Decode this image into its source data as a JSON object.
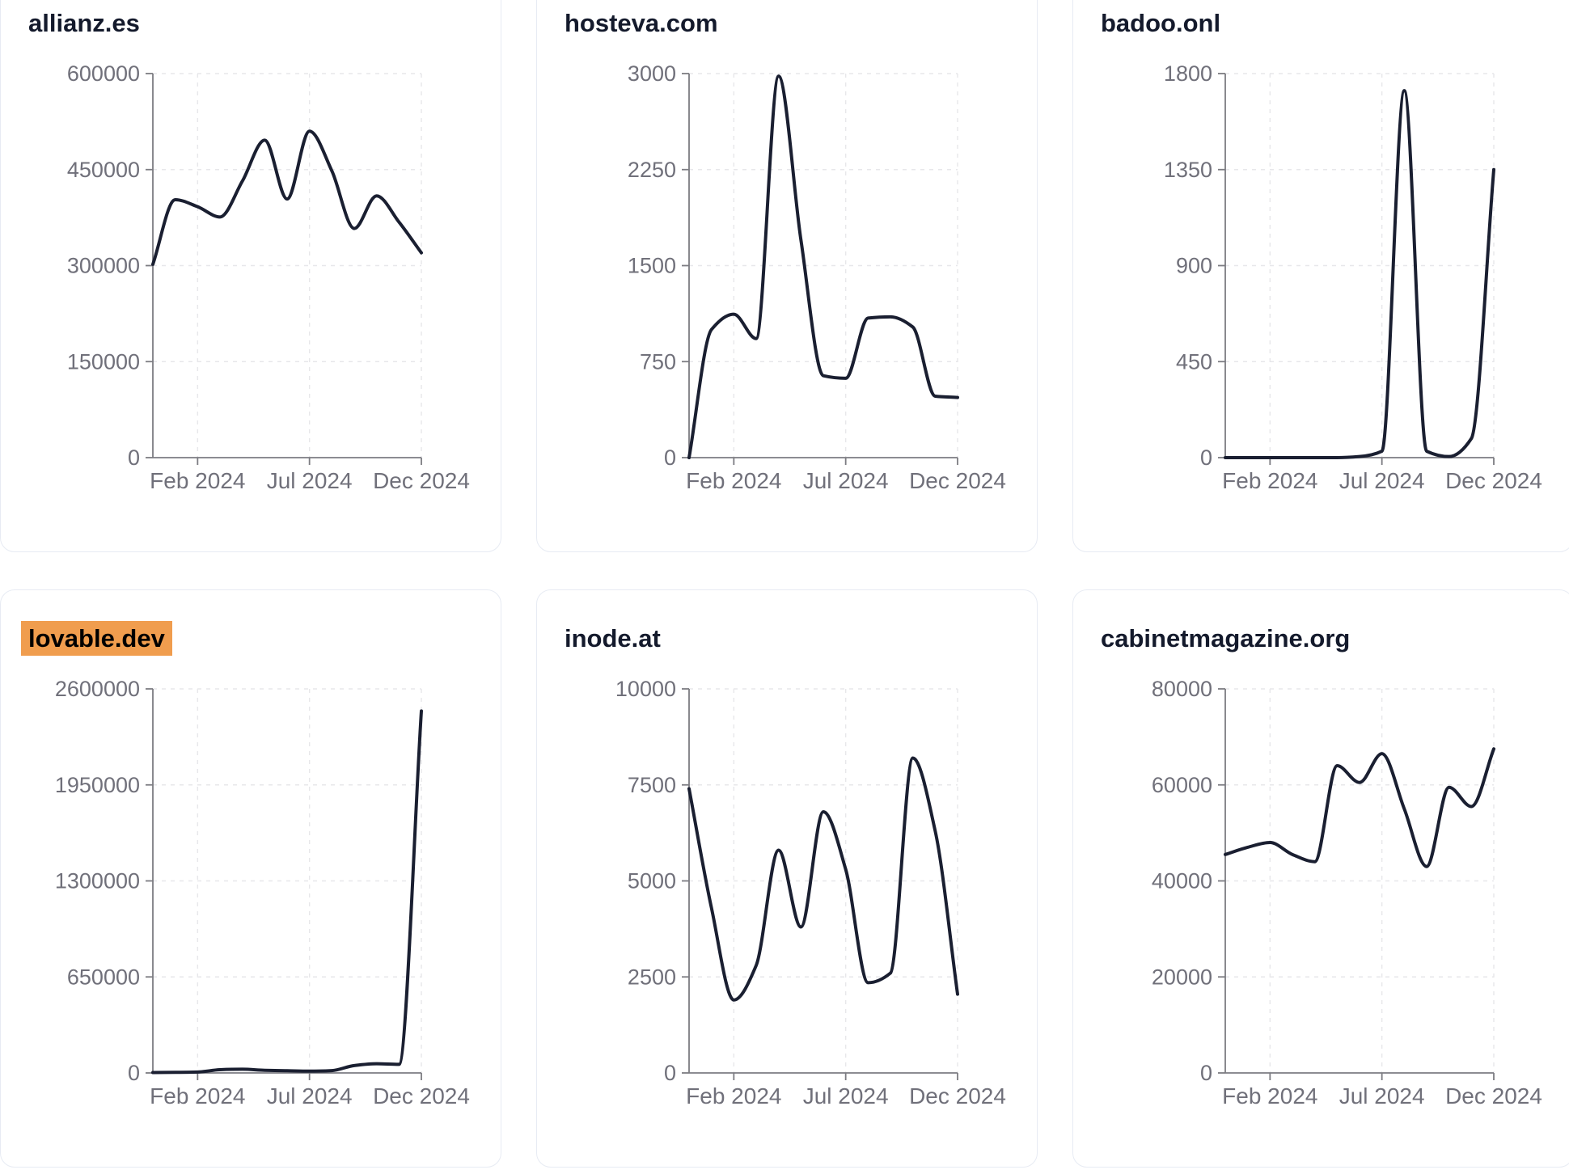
{
  "page": {
    "background": "#ffffff"
  },
  "style": {
    "line_color": "#1a1f31",
    "title_color": "#141a2c",
    "tick_label_color": "#70707a",
    "axis_color": "#7c7c82",
    "grid_color": "#e7e7ea",
    "card_border_color": "#e7ebf3",
    "card_background": "#ffffff",
    "highlight_color": "#f09d4e",
    "highlight_text_color": "#000000"
  },
  "x_tick_indices": [
    2,
    7,
    12
  ],
  "x_tick_labels": [
    "Feb 2024",
    "Jul 2024",
    "Dec 2024"
  ],
  "chart_data": [
    {
      "type": "line",
      "title": "allianz.es",
      "highlighted": false,
      "x": [
        "Dec 2023",
        "Jan 2024",
        "Feb 2024",
        "Mar 2024",
        "Apr 2024",
        "May 2024",
        "Jun 2024",
        "Jul 2024",
        "Aug 2024",
        "Sep 2024",
        "Oct 2024",
        "Nov 2024",
        "Dec 2024"
      ],
      "x_tick_labels": [
        "Feb 2024",
        "Jul 2024",
        "Dec 2024"
      ],
      "y_ticks": [
        0,
        150000,
        300000,
        450000,
        600000
      ],
      "ylim": [
        0,
        600000
      ],
      "values": [
        302000,
        403000,
        392000,
        376000,
        432000,
        496000,
        404000,
        510000,
        448000,
        358000,
        409000,
        368000,
        320000
      ],
      "grid": "dashed",
      "legend": "none"
    },
    {
      "type": "line",
      "title": "hosteva.com",
      "highlighted": false,
      "x": [
        "Dec 2023",
        "Jan 2024",
        "Feb 2024",
        "Mar 2024",
        "Apr 2024",
        "May 2024",
        "Jun 2024",
        "Jul 2024",
        "Aug 2024",
        "Sep 2024",
        "Oct 2024",
        "Nov 2024",
        "Dec 2024"
      ],
      "x_tick_labels": [
        "Feb 2024",
        "Jul 2024",
        "Dec 2024"
      ],
      "y_ticks": [
        0,
        750,
        1500,
        2250,
        3000
      ],
      "ylim": [
        0,
        3000
      ],
      "values": [
        0,
        1000,
        1120,
        930,
        2980,
        1700,
        640,
        620,
        1090,
        1100,
        1020,
        480,
        470
      ],
      "grid": "dashed",
      "legend": "none"
    },
    {
      "type": "line",
      "title": "badoo.onl",
      "highlighted": false,
      "x": [
        "Dec 2023",
        "Jan 2024",
        "Feb 2024",
        "Mar 2024",
        "Apr 2024",
        "May 2024",
        "Jun 2024",
        "Jul 2024",
        "Aug 2024",
        "Sep 2024",
        "Oct 2024",
        "Nov 2024",
        "Dec 2024"
      ],
      "x_tick_labels": [
        "Feb 2024",
        "Jul 2024",
        "Dec 2024"
      ],
      "y_ticks": [
        0,
        450,
        900,
        1350,
        1800
      ],
      "ylim": [
        0,
        1800
      ],
      "values": [
        0,
        0,
        0,
        0,
        0,
        0,
        5,
        30,
        1720,
        30,
        5,
        90,
        1350
      ],
      "grid": "dashed",
      "legend": "none"
    },
    {
      "type": "line",
      "title": "lovable.dev",
      "highlighted": true,
      "x": [
        "Dec 2023",
        "Jan 2024",
        "Feb 2024",
        "Mar 2024",
        "Apr 2024",
        "May 2024",
        "Jun 2024",
        "Jul 2024",
        "Aug 2024",
        "Sep 2024",
        "Oct 2024",
        "Nov 2024",
        "Dec 2024"
      ],
      "x_tick_labels": [
        "Feb 2024",
        "Jul 2024",
        "Dec 2024"
      ],
      "y_ticks": [
        0,
        650000,
        1300000,
        1950000,
        2600000
      ],
      "ylim": [
        0,
        2600000
      ],
      "values": [
        3000,
        4000,
        6000,
        22000,
        25000,
        18000,
        15000,
        12000,
        16000,
        50000,
        62000,
        58000,
        2450000
      ],
      "grid": "dashed",
      "legend": "none"
    },
    {
      "type": "line",
      "title": "inode.at",
      "highlighted": false,
      "x": [
        "Dec 2023",
        "Jan 2024",
        "Feb 2024",
        "Mar 2024",
        "Apr 2024",
        "May 2024",
        "Jun 2024",
        "Jul 2024",
        "Aug 2024",
        "Sep 2024",
        "Oct 2024",
        "Nov 2024",
        "Dec 2024"
      ],
      "x_tick_labels": [
        "Feb 2024",
        "Jul 2024",
        "Dec 2024"
      ],
      "y_ticks": [
        0,
        2500,
        5000,
        7500,
        10000
      ],
      "ylim": [
        0,
        10000
      ],
      "values": [
        7400,
        4300,
        1900,
        2800,
        5800,
        3800,
        6800,
        5300,
        2350,
        2600,
        8200,
        6300,
        2050
      ],
      "grid": "dashed",
      "legend": "none"
    },
    {
      "type": "line",
      "title": "cabinetmagazine.org",
      "highlighted": false,
      "x": [
        "Dec 2023",
        "Jan 2024",
        "Feb 2024",
        "Mar 2024",
        "Apr 2024",
        "May 2024",
        "Jun 2024",
        "Jul 2024",
        "Aug 2024",
        "Sep 2024",
        "Oct 2024",
        "Nov 2024",
        "Dec 2024"
      ],
      "x_tick_labels": [
        "Feb 2024",
        "Jul 2024",
        "Dec 2024"
      ],
      "y_ticks": [
        0,
        20000,
        40000,
        60000,
        80000
      ],
      "ylim": [
        0,
        80000
      ],
      "values": [
        45500,
        47000,
        48000,
        45500,
        44000,
        64000,
        60500,
        66500,
        55000,
        43000,
        59500,
        55500,
        67500
      ],
      "grid": "dashed",
      "legend": "none"
    }
  ]
}
